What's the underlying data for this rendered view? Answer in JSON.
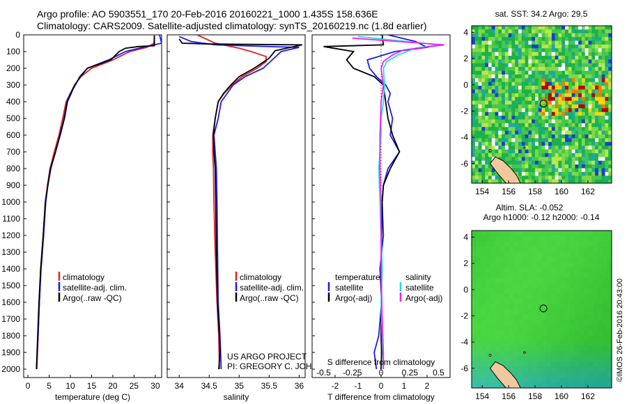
{
  "header": {
    "line1": "Argo profile: AO 5903551_170 20-Feb-2016 20160221_1000 1.435S 158.636E",
    "line2": "Climatology: CARS2009. Satellite-adjusted climatology: synTS_20160219.nc (1.8d earlier)"
  },
  "colors": {
    "climatology": "#e02020",
    "satellite": "#1a1aee",
    "argo": "#000000",
    "sal_satellite": "#22dddd",
    "sal_argo": "#ee22ee"
  },
  "chart_data": [
    {
      "type": "line",
      "name": "temperature-profile",
      "xlabel": "temperature (deg C)",
      "ylabel": "",
      "xlim": [
        -1,
        31.5
      ],
      "ylim": [
        2050,
        0
      ],
      "xticks": [
        0,
        5,
        10,
        15,
        20,
        25,
        30
      ],
      "yticks": [
        0,
        100,
        200,
        300,
        400,
        500,
        600,
        700,
        800,
        900,
        1000,
        1100,
        1200,
        1300,
        1400,
        1500,
        1600,
        1700,
        1800,
        1900,
        2000
      ],
      "legend": [
        "climatology",
        "satellite-adj. clim.",
        "Argo(..raw -QC)"
      ],
      "series": [
        {
          "name": "climatology",
          "points": [
            [
              29.8,
              0
            ],
            [
              29.7,
              50
            ],
            [
              28,
              75
            ],
            [
              24,
              100
            ],
            [
              20,
              150
            ],
            [
              15,
              200
            ],
            [
              12.5,
              250
            ],
            [
              11,
              300
            ],
            [
              10,
              350
            ],
            [
              9,
              400
            ],
            [
              8.2,
              500
            ],
            [
              7.3,
              600
            ],
            [
              6.2,
              700
            ],
            [
              5.2,
              800
            ],
            [
              4.6,
              900
            ],
            [
              4.1,
              1000
            ],
            [
              3.6,
              1200
            ],
            [
              3,
              1400
            ],
            [
              2.7,
              1600
            ],
            [
              2.4,
              1800
            ],
            [
              2.1,
              2000
            ]
          ]
        },
        {
          "name": "satellite-adj. clim.",
          "points": [
            [
              31,
              0
            ],
            [
              31.5,
              50
            ],
            [
              27,
              75
            ],
            [
              23,
              100
            ],
            [
              19,
              150
            ],
            [
              14,
              200
            ],
            [
              12.2,
              250
            ],
            [
              11.2,
              300
            ],
            [
              10,
              350
            ],
            [
              9.2,
              400
            ],
            [
              8.5,
              500
            ],
            [
              7.5,
              600
            ],
            [
              6.5,
              700
            ],
            [
              5.4,
              800
            ],
            [
              4.7,
              900
            ],
            [
              4.2,
              1000
            ],
            [
              3.7,
              1200
            ],
            [
              3.1,
              1400
            ],
            [
              2.7,
              1600
            ],
            [
              2.4,
              1800
            ],
            [
              2,
              2000
            ]
          ]
        },
        {
          "name": "Argo(..raw -QC)",
          "points": [
            [
              29.8,
              5
            ],
            [
              29.8,
              65
            ],
            [
              26,
              70
            ],
            [
              23,
              80
            ],
            [
              21.5,
              100
            ],
            [
              19.5,
              150
            ],
            [
              14,
              200
            ],
            [
              12.4,
              250
            ],
            [
              11,
              300
            ],
            [
              10.2,
              350
            ],
            [
              9.3,
              400
            ],
            [
              8.6,
              500
            ],
            [
              7.6,
              600
            ],
            [
              6.5,
              700
            ],
            [
              5.3,
              800
            ],
            [
              4.7,
              900
            ],
            [
              4.1,
              1000
            ],
            [
              3.6,
              1200
            ],
            [
              3,
              1400
            ],
            [
              2.6,
              1600
            ],
            [
              2.3,
              1800
            ],
            [
              2,
              2000
            ]
          ]
        }
      ]
    },
    {
      "type": "line",
      "name": "salinity-profile",
      "xlabel": "salinity",
      "xlim": [
        33.8,
        36.1
      ],
      "ylim": [
        2050,
        0
      ],
      "xticks": [
        34,
        34.5,
        35,
        35.5,
        36
      ],
      "legend": [
        "climatology",
        "satellite-adj. clim.",
        "Argo(..raw -QC)"
      ],
      "series": [
        {
          "name": "climatology",
          "points": [
            [
              34.3,
              0
            ],
            [
              34.6,
              50
            ],
            [
              35,
              80
            ],
            [
              35.2,
              100
            ],
            [
              35.45,
              130
            ],
            [
              35.45,
              160
            ],
            [
              35.3,
              200
            ],
            [
              35.05,
              250
            ],
            [
              34.88,
              300
            ],
            [
              34.75,
              350
            ],
            [
              34.65,
              400
            ],
            [
              34.6,
              500
            ],
            [
              34.56,
              600
            ],
            [
              34.56,
              700
            ],
            [
              34.57,
              800
            ],
            [
              34.58,
              1000
            ],
            [
              34.6,
              1300
            ],
            [
              34.63,
              1600
            ],
            [
              34.66,
              1800
            ],
            [
              34.67,
              2000
            ]
          ]
        },
        {
          "name": "satellite-adj. clim.",
          "points": [
            [
              34.0,
              10
            ],
            [
              34.2,
              40
            ],
            [
              34.6,
              60
            ],
            [
              35.5,
              70
            ],
            [
              36,
              75
            ],
            [
              35.7,
              100
            ],
            [
              35.55,
              150
            ],
            [
              35.4,
              200
            ],
            [
              35.1,
              250
            ],
            [
              34.9,
              300
            ],
            [
              34.8,
              350
            ],
            [
              34.7,
              400
            ],
            [
              34.65,
              500
            ],
            [
              34.58,
              600
            ],
            [
              34.6,
              700
            ],
            [
              34.62,
              800
            ],
            [
              34.63,
              1000
            ],
            [
              34.64,
              1300
            ],
            [
              34.65,
              1600
            ],
            [
              34.68,
              1800
            ],
            [
              34.7,
              2000
            ]
          ]
        },
        {
          "name": "Argo(..raw -QC)",
          "points": [
            [
              34.0,
              25
            ],
            [
              34.05,
              50
            ],
            [
              34.5,
              55
            ],
            [
              36.05,
              60
            ],
            [
              35.6,
              95
            ],
            [
              35.5,
              140
            ],
            [
              35.25,
              200
            ],
            [
              35.0,
              250
            ],
            [
              34.86,
              300
            ],
            [
              34.74,
              350
            ],
            [
              34.65,
              400
            ],
            [
              34.6,
              500
            ],
            [
              34.57,
              600
            ],
            [
              34.58,
              700
            ],
            [
              34.6,
              800
            ],
            [
              34.61,
              1000
            ],
            [
              34.62,
              1300
            ],
            [
              34.64,
              1600
            ],
            [
              34.67,
              1800
            ],
            [
              34.68,
              1900
            ],
            [
              34.66,
              2000
            ]
          ]
        }
      ]
    },
    {
      "type": "line",
      "name": "difference-profile",
      "xlabel_bottom": "T difference from climatology",
      "xlabel_top": "S difference from climatology",
      "xlim_T": [
        -3,
        3
      ],
      "xlim_S": [
        -0.6,
        0.6
      ],
      "ylim": [
        2050,
        0
      ],
      "xticks_T": [
        -2,
        -1,
        0,
        1,
        2
      ],
      "xticks_S": [
        -0.5,
        -0.25,
        0,
        0.25,
        0.5
      ],
      "xticklabels_S": [
        "-0.5",
        "-0.25",
        "0",
        "0.25",
        "0.5"
      ],
      "legend_temperature_title": "temperature",
      "legend_salinity_title": "salinity",
      "legend_temperature": [
        "satellite",
        "Argo(-adj)"
      ],
      "legend_salinity": [
        "satellite",
        "Argo(-adj)"
      ],
      "series": [
        {
          "name": "T satellite",
          "points": [
            [
              0.3,
              0
            ],
            [
              1.5,
              40
            ],
            [
              2,
              75
            ],
            [
              0.6,
              100
            ],
            [
              -0.6,
              150
            ],
            [
              -0.5,
              200
            ],
            [
              -0.2,
              250
            ],
            [
              0.2,
              300
            ],
            [
              0.4,
              350
            ],
            [
              0.3,
              400
            ],
            [
              0.5,
              500
            ],
            [
              0.4,
              600
            ],
            [
              0.8,
              700
            ],
            [
              0.3,
              800
            ],
            [
              0.1,
              900
            ],
            [
              0.05,
              1000
            ],
            [
              0.1,
              1200
            ],
            [
              -0.05,
              1400
            ],
            [
              0.02,
              1600
            ],
            [
              -0.1,
              1800
            ],
            [
              -0.3,
              1900
            ],
            [
              -0.2,
              2000
            ]
          ]
        },
        {
          "name": "T Argo(-adj)",
          "points": [
            [
              0.05,
              0
            ],
            [
              0.1,
              60
            ],
            [
              -2.5,
              70
            ],
            [
              -1.2,
              100
            ],
            [
              -1.5,
              150
            ],
            [
              -1.2,
              200
            ],
            [
              -0.3,
              250
            ],
            [
              0.1,
              300
            ],
            [
              0.2,
              400
            ],
            [
              0.3,
              500
            ],
            [
              0.5,
              600
            ],
            [
              0.8,
              700
            ],
            [
              0.4,
              800
            ],
            [
              0.1,
              900
            ],
            [
              0.05,
              1000
            ],
            [
              0.02,
              1200
            ],
            [
              0,
              1400
            ],
            [
              0.02,
              1600
            ],
            [
              0,
              1800
            ],
            [
              0.02,
              1900
            ],
            [
              0,
              2000
            ]
          ]
        },
        {
          "name": "S satellite",
          "points": [
            [
              -0.2,
              10
            ],
            [
              0.5,
              60
            ],
            [
              0.3,
              80
            ],
            [
              0.15,
              120
            ],
            [
              0.05,
              160
            ],
            [
              0.02,
              200
            ],
            [
              0.03,
              300
            ],
            [
              0.02,
              400
            ],
            [
              0,
              500
            ],
            [
              0,
              600
            ],
            [
              -0.02,
              800
            ],
            [
              -0.01,
              1000
            ],
            [
              0,
              1200
            ],
            [
              0.01,
              1400
            ],
            [
              0,
              1600
            ],
            [
              0.01,
              1800
            ],
            [
              0.02,
              2000
            ]
          ]
        },
        {
          "name": "S Argo(-adj)",
          "points": [
            [
              -0.25,
              20
            ],
            [
              0.55,
              60
            ],
            [
              0.2,
              90
            ],
            [
              0.1,
              120
            ],
            [
              0.02,
              160
            ],
            [
              0,
              200
            ],
            [
              0.02,
              300
            ],
            [
              0,
              400
            ],
            [
              -0.01,
              600
            ],
            [
              -0.01,
              800
            ],
            [
              0,
              1000
            ],
            [
              0,
              1400
            ],
            [
              0.01,
              1700
            ],
            [
              0.02,
              1900
            ],
            [
              0.02,
              2000
            ]
          ]
        }
      ]
    }
  ],
  "maps": {
    "sst": {
      "title": "sat. SST: 34.2  Argo: 29.5",
      "xticks": [
        154,
        156,
        158,
        160,
        162
      ],
      "yticks": [
        4,
        2,
        0,
        -2,
        -4,
        -6
      ],
      "xlim": [
        153.2,
        163.8
      ],
      "ylim": [
        -7.5,
        4.5
      ],
      "argo_lon": 158.636,
      "argo_lat": -1.435
    },
    "sla": {
      "title1": "Altim. SLA: -0.052",
      "title2": "Argo h1000: -0.12  h2000: -0.14",
      "xticks": [
        154,
        156,
        158,
        160,
        162
      ],
      "yticks": [
        4,
        2,
        0,
        -2,
        -4,
        -6
      ],
      "xlim": [
        153.2,
        163.8
      ],
      "ylim": [
        -7.5,
        4.5
      ],
      "argo_lon": 158.636,
      "argo_lat": -1.435
    }
  },
  "credits": {
    "project": "US ARGO PROJECT",
    "pi": "PI: GREGORY C. JOHNSON",
    "stamp": "©IMOS 26-Feb-2016 20:43:00"
  }
}
